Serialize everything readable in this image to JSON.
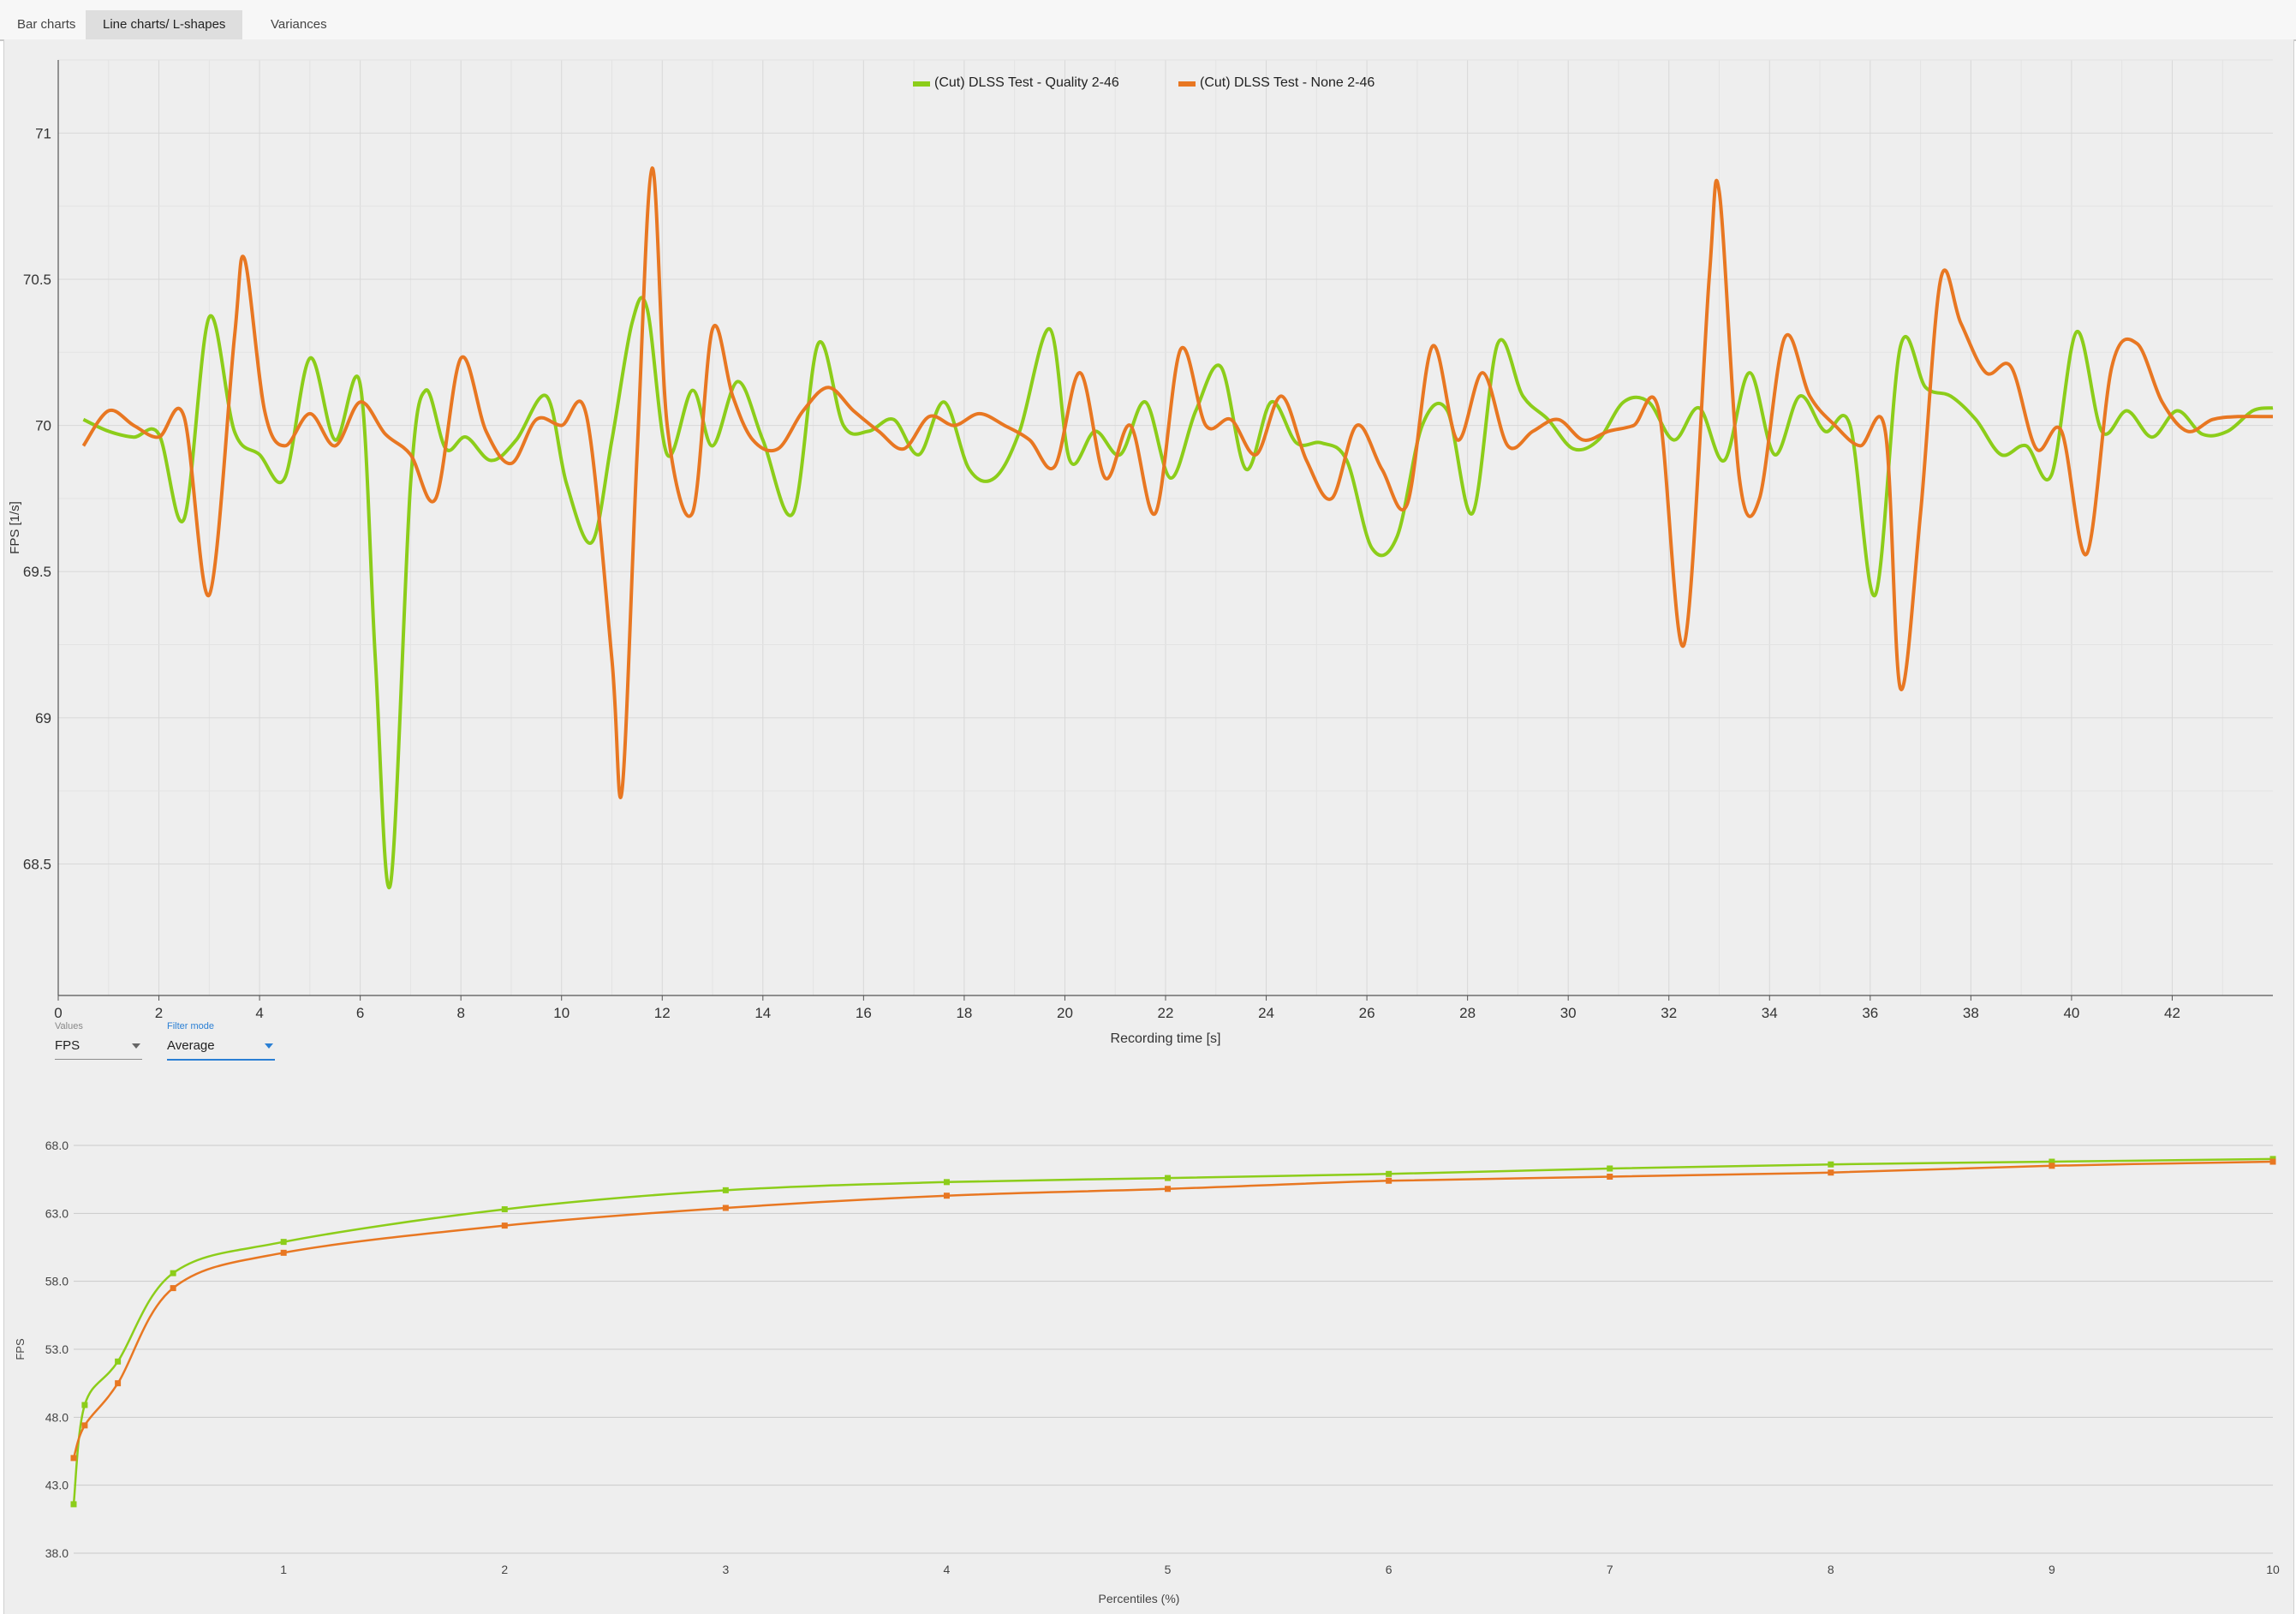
{
  "tabs": [
    {
      "label": "Bar charts",
      "active": false
    },
    {
      "label": "Line charts/ L-shapes",
      "active": true
    },
    {
      "label": "Variances",
      "active": false
    }
  ],
  "controls": {
    "values_label": "Values",
    "values_value": "FPS",
    "filter_label": "Filter mode",
    "filter_value": "Average"
  },
  "colors": {
    "quality": "#8ccd1a",
    "none": "#e87722"
  },
  "chart_data": [
    {
      "type": "line",
      "xlabel": "Recording time [s]",
      "ylabel": "FPS [1/s]",
      "xlim": [
        0,
        44
      ],
      "ylim": [
        68.05,
        71.25
      ],
      "xticks": [
        0,
        2,
        4,
        6,
        8,
        10,
        12,
        14,
        16,
        18,
        20,
        22,
        24,
        26,
        28,
        30,
        32,
        34,
        36,
        38,
        40,
        42
      ],
      "yticks": [
        68.5,
        69,
        69.5,
        70,
        70.5,
        71
      ],
      "legend_position": "top-center",
      "grid": true,
      "series": [
        {
          "name": "(Cut) DLSS Test - Quality 2-46",
          "color": "#8ccd1a",
          "x": [
            0.5,
            1.0,
            1.5,
            2.0,
            2.5,
            3.0,
            3.5,
            4.0,
            4.5,
            5.0,
            5.5,
            6.0,
            6.3,
            6.6,
            7.0,
            7.3,
            7.7,
            8.1,
            8.6,
            9.1,
            9.7,
            10.1,
            10.6,
            11.0,
            11.4,
            11.7,
            12.1,
            12.6,
            13.0,
            13.5,
            14.0,
            14.6,
            15.1,
            15.6,
            16.1,
            16.6,
            17.1,
            17.6,
            18.1,
            18.6,
            19.1,
            19.7,
            20.1,
            20.6,
            21.1,
            21.6,
            22.1,
            22.6,
            23.1,
            23.6,
            24.1,
            24.6,
            25.1,
            25.6,
            26.1,
            26.6,
            27.1,
            27.6,
            28.1,
            28.6,
            29.1,
            29.6,
            30.1,
            30.6,
            31.1,
            31.6,
            32.1,
            32.6,
            33.1,
            33.6,
            34.1,
            34.6,
            35.1,
            35.6,
            36.1,
            36.6,
            37.1,
            37.6,
            38.1,
            38.6,
            39.1,
            39.6,
            40.1,
            40.6,
            41.1,
            41.6,
            42.1,
            42.6,
            43.1,
            43.6,
            44.0
          ],
          "y": [
            70.02,
            69.98,
            69.96,
            69.97,
            69.68,
            70.37,
            69.98,
            69.9,
            69.82,
            70.23,
            69.95,
            70.14,
            69.2,
            68.43,
            69.8,
            70.12,
            69.92,
            69.96,
            69.88,
            69.95,
            70.1,
            69.8,
            69.6,
            69.95,
            70.35,
            70.4,
            69.9,
            70.12,
            69.93,
            70.15,
            69.95,
            69.7,
            70.28,
            70.0,
            69.98,
            70.02,
            69.9,
            70.08,
            69.85,
            69.82,
            69.98,
            70.33,
            69.88,
            69.98,
            69.9,
            70.08,
            69.82,
            70.05,
            70.2,
            69.85,
            70.08,
            69.94,
            69.94,
            69.88,
            69.58,
            69.62,
            70.0,
            70.05,
            69.7,
            70.28,
            70.1,
            70.02,
            69.92,
            69.95,
            70.08,
            70.08,
            69.95,
            70.06,
            69.88,
            70.18,
            69.9,
            70.1,
            69.98,
            70.0,
            69.42,
            70.27,
            70.13,
            70.1,
            70.02,
            69.9,
            69.93,
            69.83,
            70.32,
            69.98,
            70.05,
            69.96,
            70.05,
            69.97,
            69.98,
            70.05,
            70.06
          ]
        },
        {
          "name": "(Cut) DLSS Test - None 2-46",
          "color": "#e87722",
          "x": [
            0.5,
            1.0,
            1.5,
            2.0,
            2.5,
            3.0,
            3.5,
            3.7,
            4.1,
            4.5,
            5.0,
            5.5,
            6.0,
            6.5,
            7.0,
            7.5,
            8.0,
            8.5,
            9.0,
            9.5,
            10.0,
            10.5,
            11.0,
            11.2,
            11.5,
            11.8,
            12.1,
            12.6,
            13.0,
            13.4,
            13.8,
            14.3,
            14.8,
            15.3,
            15.8,
            16.3,
            16.8,
            17.3,
            17.8,
            18.3,
            18.8,
            19.3,
            19.8,
            20.3,
            20.8,
            21.3,
            21.8,
            22.3,
            22.8,
            23.3,
            23.8,
            24.3,
            24.8,
            25.3,
            25.8,
            26.3,
            26.8,
            27.3,
            27.8,
            28.3,
            28.8,
            29.3,
            29.8,
            30.3,
            30.8,
            31.3,
            31.8,
            32.3,
            32.8,
            33.0,
            33.4,
            33.8,
            34.3,
            34.8,
            35.3,
            35.8,
            36.3,
            36.6,
            37.0,
            37.4,
            37.8,
            38.3,
            38.8,
            39.3,
            39.8,
            40.3,
            40.8,
            41.3,
            41.8,
            42.3,
            42.8,
            43.3,
            44.0
          ],
          "y": [
            69.93,
            70.05,
            70.0,
            69.96,
            70.03,
            69.42,
            70.3,
            70.57,
            70.05,
            69.93,
            70.04,
            69.93,
            70.08,
            69.97,
            69.9,
            69.75,
            70.23,
            69.98,
            69.87,
            70.02,
            70.0,
            70.03,
            69.2,
            68.75,
            69.9,
            70.88,
            70.0,
            69.7,
            70.33,
            70.1,
            69.95,
            69.92,
            70.05,
            70.13,
            70.05,
            69.98,
            69.92,
            70.03,
            70.0,
            70.04,
            70.0,
            69.95,
            69.86,
            70.18,
            69.82,
            70.0,
            69.7,
            70.26,
            70.0,
            70.02,
            69.9,
            70.1,
            69.88,
            69.75,
            70.0,
            69.85,
            69.73,
            70.27,
            69.95,
            70.18,
            69.93,
            69.98,
            70.02,
            69.95,
            69.98,
            70.0,
            70.05,
            69.25,
            70.5,
            70.8,
            69.82,
            69.75,
            70.3,
            70.1,
            70.0,
            69.93,
            69.98,
            69.1,
            69.7,
            70.5,
            70.35,
            70.18,
            70.2,
            69.92,
            69.98,
            69.56,
            70.2,
            70.28,
            70.08,
            69.98,
            70.02,
            70.03,
            70.03
          ]
        }
      ]
    },
    {
      "type": "line",
      "xlabel": "Percentiles (%)",
      "ylabel": "FPS",
      "xlim": [
        0,
        10
      ],
      "ylim": [
        38,
        68
      ],
      "xticks": [
        1,
        2,
        3,
        4,
        5,
        6,
        7,
        8,
        9,
        10
      ],
      "yticks": [
        "38.0",
        "43.0",
        "48.0",
        "53.0",
        "58.0",
        "63.0",
        "68.0"
      ],
      "grid": true,
      "series": [
        {
          "name": "(Cut) DLSS Test - Quality 2-46",
          "color": "#8ccd1a",
          "x": [
            0.05,
            0.1,
            0.25,
            0.5,
            1,
            2,
            3,
            4,
            5,
            6,
            7,
            8,
            9,
            10
          ],
          "y": [
            41.6,
            48.9,
            52.1,
            58.6,
            60.9,
            63.3,
            64.7,
            65.3,
            65.6,
            65.9,
            66.3,
            66.6,
            66.8,
            67.0
          ],
          "markers": true
        },
        {
          "name": "(Cut) DLSS Test - None 2-46",
          "color": "#e87722",
          "x": [
            0.05,
            0.1,
            0.25,
            0.5,
            1,
            2,
            3,
            4,
            5,
            6,
            7,
            8,
            9,
            10
          ],
          "y": [
            45.0,
            47.4,
            50.5,
            57.5,
            60.1,
            62.1,
            63.4,
            64.3,
            64.8,
            65.4,
            65.7,
            66.0,
            66.5,
            66.8
          ],
          "markers": true
        }
      ]
    }
  ]
}
